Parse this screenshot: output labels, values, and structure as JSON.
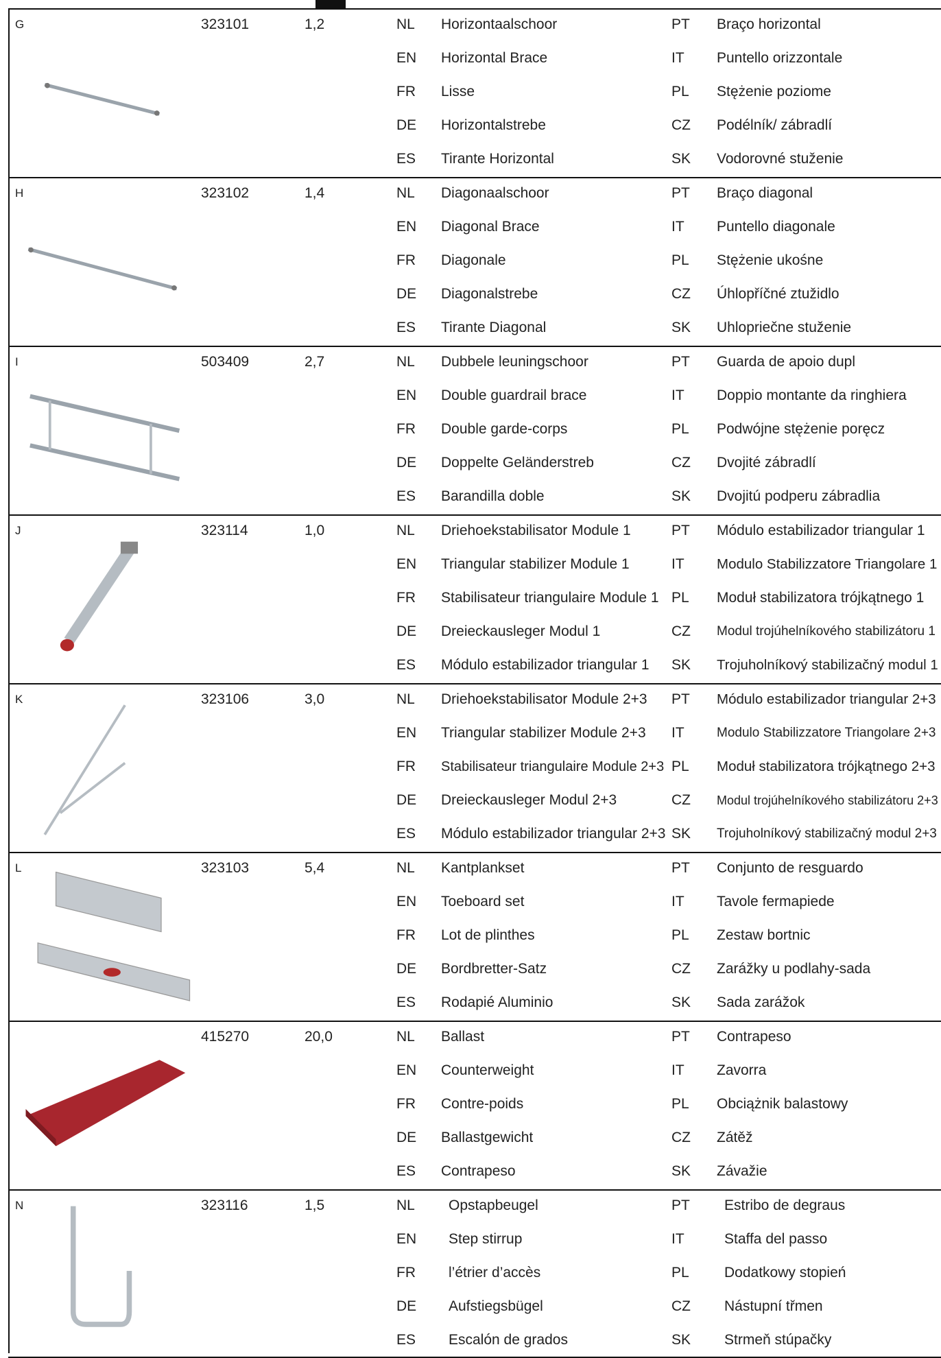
{
  "rows": [
    {
      "letter": "G",
      "code": "323101",
      "weight": "1,2",
      "lines": [
        [
          "NL",
          "Horizontaalschoor",
          "PT",
          "Braço horizontal"
        ],
        [
          "EN",
          "Horizontal Brace",
          "IT",
          "Puntello orizzontale"
        ],
        [
          "FR",
          "Lisse",
          "PL",
          "Stężenie poziome"
        ],
        [
          "DE",
          "Horizontalstrebe",
          "CZ",
          "Podélník/ zábradlí"
        ],
        [
          "ES",
          "Tirante Horizontal",
          "SK",
          "Vodorovné stuženie"
        ]
      ]
    },
    {
      "letter": "H",
      "code": "323102",
      "weight": "1,4",
      "lines": [
        [
          "NL",
          "Diagonaalschoor",
          "PT",
          "Braço diagonal"
        ],
        [
          "EN",
          "Diagonal Brace",
          "IT",
          "Puntello diagonale"
        ],
        [
          "FR",
          "Diagonale",
          "PL",
          "Stężenie ukośne"
        ],
        [
          "DE",
          "Diagonalstrebe",
          "CZ",
          "Úhlopříčné ztužidlo"
        ],
        [
          "ES",
          "Tirante Diagonal",
          "SK",
          "Uhlopriečne stuženie"
        ]
      ]
    },
    {
      "letter": "I",
      "code": "503409",
      "weight": "2,7",
      "lines": [
        [
          "NL",
          "Dubbele leuningschoor",
          "PT",
          "Guarda de apoio dupl"
        ],
        [
          "EN",
          "Double guardrail brace",
          "IT",
          "Doppio montante da ringhiera"
        ],
        [
          "FR",
          "Double garde-corps",
          "PL",
          "Podwójne stężenie poręcz"
        ],
        [
          "DE",
          "Doppelte Geländerstreb",
          "CZ",
          "Dvojité zábradlí"
        ],
        [
          "ES",
          "Barandilla doble",
          "SK",
          "Dvojitú podperu zábradlia"
        ]
      ]
    },
    {
      "letter": "J",
      "code": "323114",
      "weight": "1,0",
      "lines": [
        [
          "NL",
          "Driehoekstabilisator Module 1",
          "PT",
          "Módulo estabilizador triangular 1"
        ],
        [
          "EN",
          "Triangular stabilizer Module 1",
          "IT",
          "Modulo Stabilizzatore Triangolare 1"
        ],
        [
          "FR",
          "Stabilisateur triangulaire Module 1",
          "PL",
          "Moduł stabilizatora trójkątnego 1"
        ],
        [
          "DE",
          "Dreieckausleger Modul 1",
          "CZ",
          "Modul trojúhelníkového stabilizátoru 1"
        ],
        [
          "ES",
          "Módulo estabilizador triangular 1",
          "SK",
          "Trojuholníkový stabilizačný modul 1"
        ]
      ]
    },
    {
      "letter": "K",
      "code": "323106",
      "weight": "3,0",
      "lines": [
        [
          "NL",
          "Driehoekstabilisator Module 2+3",
          "PT",
          "Módulo estabilizador triangular 2+3"
        ],
        [
          "EN",
          "Triangular stabilizer Module 2+3",
          "IT",
          "Modulo Stabilizzatore Triangolare 2+3"
        ],
        [
          "FR",
          "Stabilisateur triangulaire Module 2+3",
          "PL",
          "Moduł stabilizatora trójkątnego 2+3"
        ],
        [
          "DE",
          "Dreieckausleger Modul 2+3",
          "CZ",
          "Modul trojúhelníkového stabilizátoru 2+3"
        ],
        [
          "ES",
          "Módulo estabilizador triangular 2+3",
          "SK",
          "Trojuholníkový stabilizačný modul 2+3"
        ]
      ]
    },
    {
      "letter": "L",
      "code": "323103",
      "weight": "5,4",
      "lines": [
        [
          "NL",
          "Kantplankset",
          "PT",
          "Conjunto de resguardo"
        ],
        [
          "EN",
          "Toeboard set",
          "IT",
          "Tavole fermapiede"
        ],
        [
          "FR",
          "Lot de plinthes",
          "PL",
          "Zestaw bortnic"
        ],
        [
          "DE",
          "Bordbretter-Satz",
          "CZ",
          "Zarážky u podlahy-sada"
        ],
        [
          "ES",
          "Rodapié Aluminio",
          "SK",
          "Sada zarážok"
        ]
      ]
    },
    {
      "code": "415270",
      "weight": "20,0",
      "lines": [
        [
          "NL",
          "Ballast",
          "PT",
          "Contrapeso"
        ],
        [
          "EN",
          "Counterweight",
          "IT",
          "Zavorra"
        ],
        [
          "FR",
          "Contre-poids",
          "PL",
          "Obciążnik balastowy"
        ],
        [
          "DE",
          "Ballastgewicht",
          "CZ",
          "Zátěž"
        ],
        [
          "ES",
          "Contrapeso",
          "SK",
          "Závažie"
        ]
      ]
    },
    {
      "letter": "N",
      "code": "323116",
      "weight": "1,5",
      "lines": [
        [
          "NL",
          "Opstapbeugel",
          "PT",
          "Estribo de degraus"
        ],
        [
          "EN",
          "Step stirrup",
          "IT",
          "Staffa del passo"
        ],
        [
          "FR",
          "l’étrier d’accès",
          "PL",
          "Dodatkowy stopień"
        ],
        [
          "DE",
          "Aufstiegsbügel",
          "CZ",
          "Nástupní třmen"
        ],
        [
          "ES",
          "Escalón de grados",
          "SK",
          "Strmeň stúpačky"
        ]
      ]
    }
  ]
}
